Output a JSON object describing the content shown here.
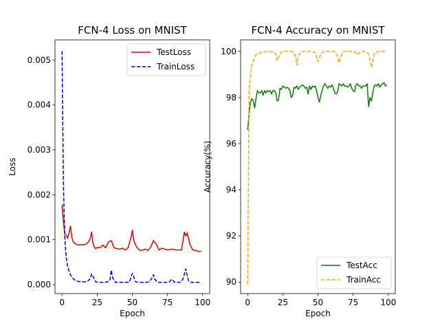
{
  "chart_data": [
    {
      "type": "line",
      "title": "FCN-4 Loss on MNIST",
      "xlabel": "Epoch",
      "ylabel": "Loss",
      "xlim": [
        -5,
        105
      ],
      "ylim": [
        -0.0002,
        0.00545
      ],
      "xticks": [
        0,
        25,
        50,
        75,
        100
      ],
      "yticks": [
        0.0,
        0.001,
        0.002,
        0.003,
        0.004,
        0.005
      ],
      "ytick_labels": [
        "0.000",
        "0.001",
        "0.002",
        "0.003",
        "0.004",
        "0.005"
      ],
      "legend_position": "top-right",
      "series": [
        {
          "name": "TestLoss",
          "color": "#dd0000",
          "style": "solid",
          "x": [
            0,
            1,
            2,
            3,
            4,
            5,
            6,
            7,
            8,
            9,
            10,
            12,
            14,
            16,
            18,
            20,
            21,
            22,
            23,
            24,
            25,
            27,
            29,
            31,
            33,
            35,
            37,
            39,
            41,
            43,
            45,
            47,
            49,
            50,
            51,
            53,
            55,
            57,
            59,
            61,
            63,
            65,
            67,
            69,
            71,
            73,
            75,
            77,
            79,
            81,
            83,
            85,
            87,
            88,
            89,
            90,
            91,
            93,
            95,
            97,
            99
          ],
          "y": [
            0.00178,
            0.0014,
            0.00112,
            0.0011,
            0.00103,
            0.00115,
            0.0013,
            0.00105,
            0.00095,
            0.00092,
            0.0009,
            0.00088,
            0.00089,
            0.00089,
            0.00092,
            0.00102,
            0.00117,
            0.00092,
            0.00083,
            0.0008,
            0.00083,
            0.00082,
            0.00088,
            0.00082,
            0.00095,
            0.00098,
            0.00082,
            0.0008,
            0.00079,
            0.00081,
            0.00077,
            0.00082,
            0.00105,
            0.00121,
            0.00098,
            0.00084,
            0.00077,
            0.00076,
            0.00079,
            0.00076,
            0.00083,
            0.00098,
            0.0009,
            0.00077,
            0.00081,
            0.00079,
            0.00077,
            0.00078,
            0.00079,
            0.00077,
            0.00077,
            0.00077,
            0.00117,
            0.00108,
            0.00115,
            0.00103,
            0.00089,
            0.00077,
            0.00076,
            0.00074,
            0.00074
          ]
        },
        {
          "name": "TrainLoss",
          "color": "#0000cc",
          "style": "dashed",
          "x": [
            0,
            1,
            2,
            3,
            4,
            5,
            6,
            7,
            8,
            9,
            10,
            12,
            14,
            16,
            18,
            20,
            21,
            22,
            24,
            26,
            28,
            30,
            32,
            34,
            35,
            36,
            38,
            40,
            42,
            44,
            46,
            48,
            50,
            51,
            52,
            54,
            56,
            58,
            60,
            62,
            64,
            65,
            66,
            68,
            70,
            72,
            74,
            76,
            78,
            80,
            82,
            84,
            86,
            88,
            89,
            90,
            92,
            94,
            96,
            98,
            99
          ],
          "y": [
            0.0052,
            0.0022,
            0.001,
            0.0006,
            0.0004,
            0.0003,
            0.00022,
            0.00016,
            0.00013,
            0.0001,
            8e-05,
            7e-05,
            6e-05,
            6e-05,
            7e-05,
            0.00013,
            0.00024,
            0.00018,
            6e-05,
            5e-05,
            5e-05,
            5e-05,
            6e-05,
            9e-05,
            0.00032,
            0.00015,
            5e-05,
            5e-05,
            5e-05,
            5e-05,
            5e-05,
            6e-05,
            0.00025,
            0.00018,
            7e-05,
            5e-05,
            5e-05,
            5e-05,
            5e-05,
            6e-05,
            0.00015,
            0.00022,
            0.00012,
            5e-05,
            5e-05,
            5e-05,
            5e-05,
            5e-05,
            0.00012,
            5e-05,
            5e-05,
            5e-05,
            0.00012,
            0.00035,
            0.0002,
            8e-05,
            5e-05,
            5e-05,
            5e-05,
            5e-05,
            5e-05
          ]
        }
      ]
    },
    {
      "type": "line",
      "title": "FCN-4 Accuracy on MNIST",
      "xlabel": "Epoch",
      "ylabel": "Accuracy(%)",
      "xlim": [
        -5,
        105
      ],
      "ylim": [
        89.5,
        100.5
      ],
      "xticks": [
        0,
        25,
        50,
        75,
        100
      ],
      "yticks": [
        90,
        92,
        94,
        96,
        98,
        100
      ],
      "ytick_labels": [
        "90",
        "92",
        "94",
        "96",
        "98",
        "100"
      ],
      "legend_position": "bottom-right",
      "series": [
        {
          "name": "TestAcc",
          "color": "#008000",
          "style": "solid",
          "x": [
            0,
            1,
            2,
            3,
            4,
            5,
            6,
            7,
            8,
            9,
            10,
            11,
            12,
            13,
            14,
            15,
            16,
            17,
            18,
            19,
            20,
            21,
            22,
            23,
            24,
            25,
            26,
            27,
            28,
            29,
            30,
            31,
            32,
            33,
            34,
            35,
            36,
            37,
            38,
            39,
            40,
            41,
            42,
            43,
            44,
            45,
            46,
            47,
            48,
            49,
            50,
            51,
            52,
            53,
            54,
            55,
            56,
            57,
            58,
            59,
            60,
            61,
            62,
            63,
            64,
            65,
            66,
            67,
            68,
            69,
            70,
            71,
            72,
            73,
            74,
            75,
            76,
            77,
            78,
            79,
            80,
            81,
            82,
            83,
            84,
            85,
            86,
            87,
            88,
            89,
            90,
            91,
            92,
            93,
            94,
            95,
            96,
            97,
            98,
            99
          ],
          "y": [
            96.6,
            97.3,
            97.8,
            97.95,
            97.85,
            97.55,
            98.0,
            98.3,
            98.2,
            98.2,
            98.3,
            98.1,
            98.3,
            98.2,
            98.3,
            98.25,
            98.3,
            98.15,
            98.3,
            98.3,
            98.2,
            97.85,
            97.9,
            98.4,
            98.35,
            98.5,
            98.45,
            98.4,
            98.45,
            98.4,
            98.3,
            98.0,
            98.1,
            98.45,
            98.4,
            98.5,
            98.35,
            98.45,
            98.5,
            98.55,
            98.5,
            98.4,
            98.45,
            98.15,
            98.5,
            98.35,
            98.5,
            98.45,
            98.5,
            98.3,
            98.0,
            97.8,
            98.1,
            98.3,
            98.5,
            98.6,
            98.5,
            98.4,
            98.5,
            98.45,
            98.55,
            98.4,
            98.2,
            98.15,
            98.25,
            98.6,
            98.55,
            98.5,
            98.6,
            98.5,
            98.5,
            98.45,
            98.5,
            98.6,
            98.4,
            98.3,
            98.25,
            98.55,
            98.6,
            98.5,
            98.5,
            98.4,
            98.5,
            98.5,
            98.5,
            98.6,
            97.6,
            98.0,
            97.85,
            98.2,
            98.5,
            98.55,
            98.5,
            98.6,
            98.45,
            98.55,
            98.6,
            98.65,
            98.5,
            98.55
          ]
        },
        {
          "name": "TrainAcc",
          "color": "#ffa500",
          "style": "dashed",
          "x": [
            0,
            1,
            2,
            3,
            4,
            5,
            6,
            7,
            8,
            9,
            10,
            12,
            14,
            16,
            18,
            20,
            21,
            22,
            24,
            26,
            28,
            30,
            32,
            34,
            35,
            36,
            38,
            40,
            42,
            44,
            46,
            48,
            50,
            51,
            52,
            54,
            56,
            58,
            60,
            62,
            64,
            65,
            66,
            68,
            70,
            72,
            74,
            76,
            78,
            80,
            82,
            84,
            86,
            88,
            89,
            90,
            92,
            94,
            96,
            98,
            99
          ],
          "y": [
            89.9,
            98.3,
            99.0,
            99.4,
            99.6,
            99.75,
            99.85,
            99.9,
            99.92,
            99.95,
            99.97,
            99.98,
            99.99,
            99.99,
            99.99,
            99.9,
            99.6,
            99.75,
            99.99,
            100.0,
            100.0,
            100.0,
            99.99,
            99.8,
            99.4,
            99.8,
            99.99,
            100.0,
            100.0,
            100.0,
            99.99,
            99.95,
            99.55,
            99.7,
            99.9,
            99.99,
            100.0,
            100.0,
            100.0,
            99.99,
            99.8,
            99.5,
            99.75,
            99.99,
            100.0,
            100.0,
            100.0,
            99.99,
            99.85,
            99.99,
            100.0,
            99.98,
            99.9,
            99.3,
            99.6,
            99.9,
            99.99,
            100.0,
            100.0,
            100.0,
            100.0
          ]
        }
      ]
    }
  ]
}
